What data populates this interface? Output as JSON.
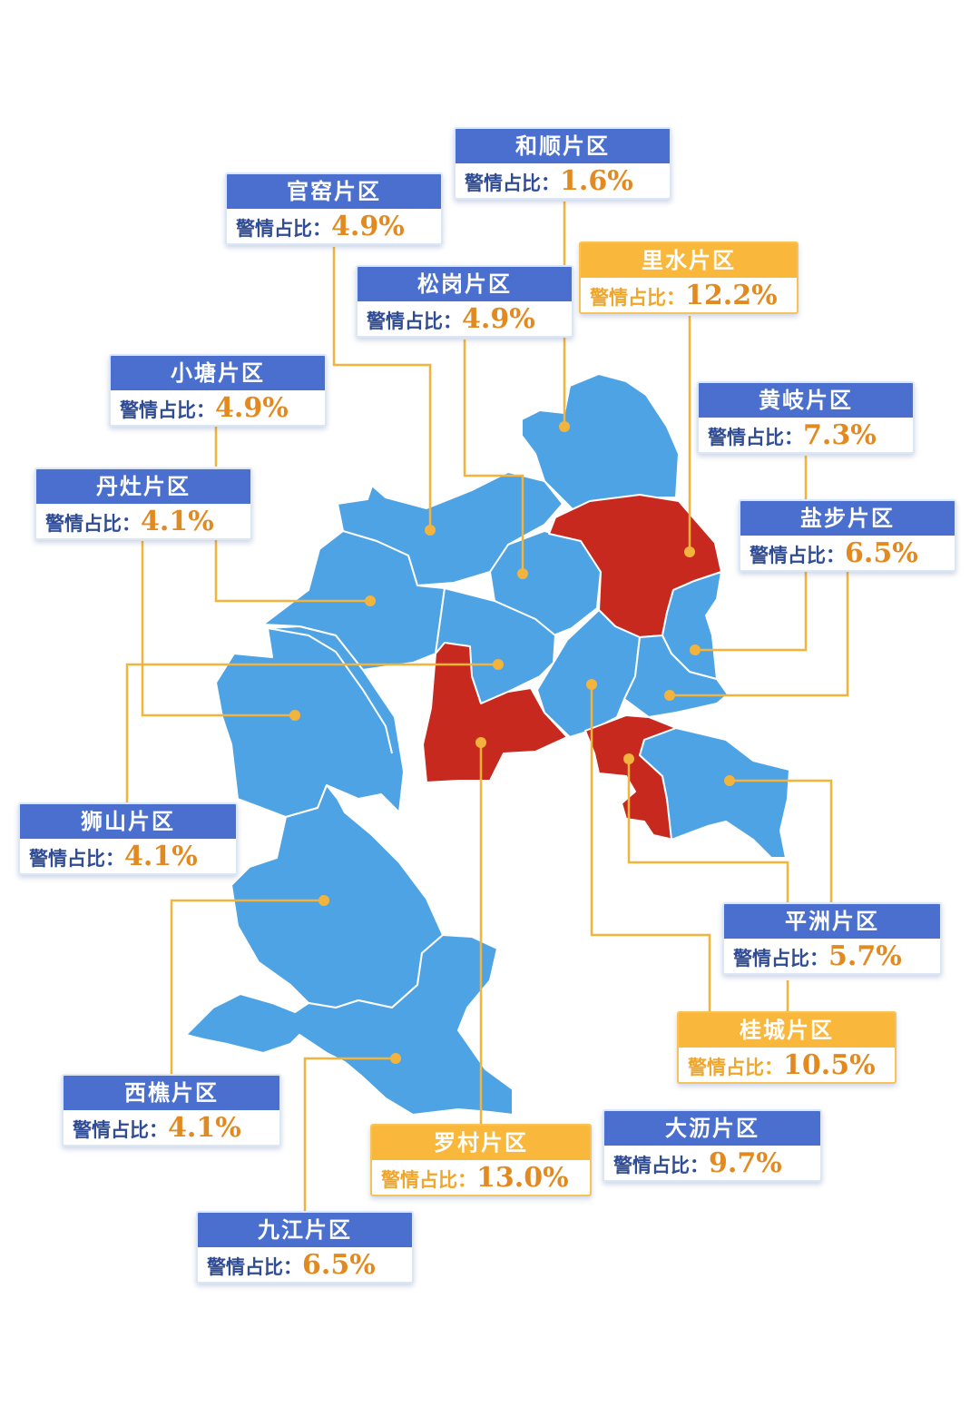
{
  "label_prefix": "警情占比：",
  "colors": {
    "normal_region": "#4ea3e4",
    "hot_region": "#c8291f",
    "header_normal": "#4a6fce",
    "header_hot": "#f9b83c",
    "leader_line": "#f3b43d",
    "value_text": "#e28a1f"
  },
  "regions": [
    {
      "id": "heshun",
      "name": "和顺片区",
      "value": "1.6%",
      "highlight": false
    },
    {
      "id": "guanyao",
      "name": "官窑片区",
      "value": "4.9%",
      "highlight": false
    },
    {
      "id": "lishui",
      "name": "里水片区",
      "value": "12.2%",
      "highlight": true
    },
    {
      "id": "songgang",
      "name": "松岗片区",
      "value": "4.9%",
      "highlight": false
    },
    {
      "id": "xiaotang",
      "name": "小塘片区",
      "value": "4.9%",
      "highlight": false
    },
    {
      "id": "huangqi",
      "name": "黄岐片区",
      "value": "7.3%",
      "highlight": false
    },
    {
      "id": "danzao",
      "name": "丹灶片区",
      "value": "4.1%",
      "highlight": false
    },
    {
      "id": "yanbu",
      "name": "盐步片区",
      "value": "6.5%",
      "highlight": false
    },
    {
      "id": "shishan",
      "name": "狮山片区",
      "value": "4.1%",
      "highlight": false
    },
    {
      "id": "pingzhou",
      "name": "平洲片区",
      "value": "5.7%",
      "highlight": false
    },
    {
      "id": "guicheng",
      "name": "桂城片区",
      "value": "10.5%",
      "highlight": true
    },
    {
      "id": "xiqiao",
      "name": "西樵片区",
      "value": "4.1%",
      "highlight": false
    },
    {
      "id": "dali",
      "name": "大沥片区",
      "value": "9.7%",
      "highlight": false
    },
    {
      "id": "luocun",
      "name": "罗村片区",
      "value": "13.0%",
      "highlight": true
    },
    {
      "id": "jiujiang",
      "name": "九江片区",
      "value": "6.5%",
      "highlight": false
    }
  ]
}
